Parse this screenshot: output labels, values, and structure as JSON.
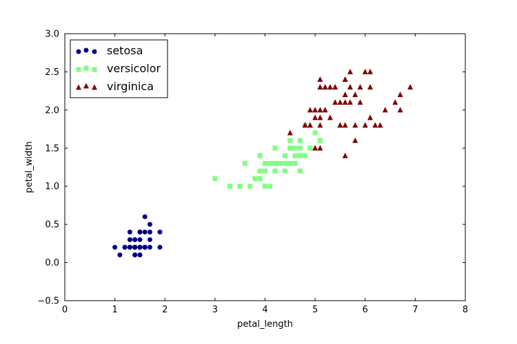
{
  "chart_data": {
    "type": "scatter",
    "title": "",
    "xlabel": "petal_length",
    "ylabel": "petal_width",
    "xlim": [
      0,
      8
    ],
    "ylim": [
      -0.5,
      3.0
    ],
    "xticks": [
      "0",
      "1",
      "2",
      "3",
      "4",
      "5",
      "6",
      "7",
      "8"
    ],
    "yticks": [
      "−0.5",
      "0.0",
      "0.5",
      "1.0",
      "1.5",
      "2.0",
      "2.5",
      "3.0"
    ],
    "xtick_values": [
      0,
      1,
      2,
      3,
      4,
      5,
      6,
      7,
      8
    ],
    "ytick_values": [
      -0.5,
      0.0,
      0.5,
      1.0,
      1.5,
      2.0,
      2.5,
      3.0
    ],
    "grid": false,
    "legend_position": "top-left",
    "series": [
      {
        "name": "setosa",
        "marker": "circle",
        "color": "#00008b",
        "points": [
          [
            1.4,
            0.2
          ],
          [
            1.4,
            0.2
          ],
          [
            1.3,
            0.2
          ],
          [
            1.5,
            0.2
          ],
          [
            1.4,
            0.2
          ],
          [
            1.7,
            0.4
          ],
          [
            1.4,
            0.3
          ],
          [
            1.5,
            0.2
          ],
          [
            1.4,
            0.2
          ],
          [
            1.5,
            0.1
          ],
          [
            1.5,
            0.2
          ],
          [
            1.6,
            0.2
          ],
          [
            1.4,
            0.1
          ],
          [
            1.1,
            0.1
          ],
          [
            1.2,
            0.2
          ],
          [
            1.5,
            0.4
          ],
          [
            1.3,
            0.4
          ],
          [
            1.4,
            0.3
          ],
          [
            1.7,
            0.3
          ],
          [
            1.5,
            0.3
          ],
          [
            1.7,
            0.2
          ],
          [
            1.5,
            0.4
          ],
          [
            1.0,
            0.2
          ],
          [
            1.7,
            0.5
          ],
          [
            1.9,
            0.2
          ],
          [
            1.6,
            0.2
          ],
          [
            1.6,
            0.4
          ],
          [
            1.5,
            0.2
          ],
          [
            1.4,
            0.2
          ],
          [
            1.6,
            0.2
          ],
          [
            1.6,
            0.2
          ],
          [
            1.5,
            0.4
          ],
          [
            1.5,
            0.1
          ],
          [
            1.4,
            0.2
          ],
          [
            1.5,
            0.2
          ],
          [
            1.2,
            0.2
          ],
          [
            1.3,
            0.2
          ],
          [
            1.4,
            0.1
          ],
          [
            1.3,
            0.2
          ],
          [
            1.5,
            0.2
          ],
          [
            1.3,
            0.3
          ],
          [
            1.3,
            0.3
          ],
          [
            1.3,
            0.2
          ],
          [
            1.6,
            0.6
          ],
          [
            1.9,
            0.4
          ],
          [
            1.4,
            0.3
          ],
          [
            1.6,
            0.2
          ],
          [
            1.4,
            0.2
          ],
          [
            1.5,
            0.2
          ],
          [
            1.4,
            0.2
          ]
        ]
      },
      {
        "name": "versicolor",
        "marker": "square",
        "color": "#7fff7f",
        "points": [
          [
            4.7,
            1.4
          ],
          [
            4.5,
            1.5
          ],
          [
            4.9,
            1.5
          ],
          [
            4.0,
            1.3
          ],
          [
            4.6,
            1.5
          ],
          [
            4.5,
            1.3
          ],
          [
            4.7,
            1.6
          ],
          [
            3.3,
            1.0
          ],
          [
            4.6,
            1.3
          ],
          [
            3.9,
            1.4
          ],
          [
            3.5,
            1.0
          ],
          [
            4.2,
            1.5
          ],
          [
            4.0,
            1.0
          ],
          [
            4.7,
            1.4
          ],
          [
            3.6,
            1.3
          ],
          [
            4.4,
            1.4
          ],
          [
            4.5,
            1.5
          ],
          [
            4.1,
            1.0
          ],
          [
            4.5,
            1.5
          ],
          [
            3.9,
            1.1
          ],
          [
            4.8,
            1.8
          ],
          [
            4.0,
            1.3
          ],
          [
            4.9,
            1.5
          ],
          [
            4.7,
            1.2
          ],
          [
            4.3,
            1.3
          ],
          [
            4.4,
            1.4
          ],
          [
            4.8,
            1.4
          ],
          [
            5.0,
            1.7
          ],
          [
            4.5,
            1.5
          ],
          [
            3.5,
            1.0
          ],
          [
            3.8,
            1.1
          ],
          [
            3.7,
            1.0
          ],
          [
            3.9,
            1.2
          ],
          [
            5.1,
            1.6
          ],
          [
            4.5,
            1.5
          ],
          [
            4.5,
            1.6
          ],
          [
            4.7,
            1.5
          ],
          [
            4.4,
            1.3
          ],
          [
            4.1,
            1.3
          ],
          [
            4.0,
            1.3
          ],
          [
            4.4,
            1.2
          ],
          [
            4.6,
            1.4
          ],
          [
            4.0,
            1.2
          ],
          [
            3.3,
            1.0
          ],
          [
            4.2,
            1.3
          ],
          [
            4.2,
            1.2
          ],
          [
            4.2,
            1.3
          ],
          [
            4.3,
            1.3
          ],
          [
            3.0,
            1.1
          ],
          [
            4.1,
            1.3
          ]
        ]
      },
      {
        "name": "virginica",
        "marker": "triangle",
        "color": "#800000",
        "points": [
          [
            6.0,
            2.5
          ],
          [
            5.1,
            1.9
          ],
          [
            5.9,
            2.1
          ],
          [
            5.6,
            1.8
          ],
          [
            5.8,
            2.2
          ],
          [
            6.6,
            2.1
          ],
          [
            4.5,
            1.7
          ],
          [
            6.3,
            1.8
          ],
          [
            5.8,
            1.8
          ],
          [
            6.1,
            2.5
          ],
          [
            5.1,
            2.0
          ],
          [
            5.3,
            1.9
          ],
          [
            5.5,
            2.1
          ],
          [
            5.0,
            2.0
          ],
          [
            5.1,
            2.4
          ],
          [
            5.3,
            2.3
          ],
          [
            5.5,
            1.8
          ],
          [
            6.7,
            2.2
          ],
          [
            6.9,
            2.3
          ],
          [
            5.0,
            1.5
          ],
          [
            5.7,
            2.3
          ],
          [
            4.9,
            2.0
          ],
          [
            6.7,
            2.0
          ],
          [
            4.9,
            1.8
          ],
          [
            5.7,
            2.1
          ],
          [
            6.0,
            1.8
          ],
          [
            4.8,
            1.8
          ],
          [
            4.9,
            1.8
          ],
          [
            5.6,
            2.1
          ],
          [
            5.8,
            1.6
          ],
          [
            6.1,
            1.9
          ],
          [
            6.4,
            2.0
          ],
          [
            5.6,
            2.2
          ],
          [
            5.1,
            1.5
          ],
          [
            5.6,
            1.4
          ],
          [
            6.1,
            2.3
          ],
          [
            5.6,
            2.4
          ],
          [
            5.5,
            1.8
          ],
          [
            4.8,
            1.8
          ],
          [
            5.4,
            2.1
          ],
          [
            5.6,
            2.4
          ],
          [
            5.1,
            2.3
          ],
          [
            5.9,
            2.3
          ],
          [
            5.7,
            2.5
          ],
          [
            5.2,
            2.3
          ],
          [
            5.0,
            1.9
          ],
          [
            5.2,
            2.0
          ],
          [
            5.4,
            2.3
          ],
          [
            5.1,
            1.8
          ],
          [
            6.2,
            1.8
          ]
        ]
      }
    ]
  }
}
